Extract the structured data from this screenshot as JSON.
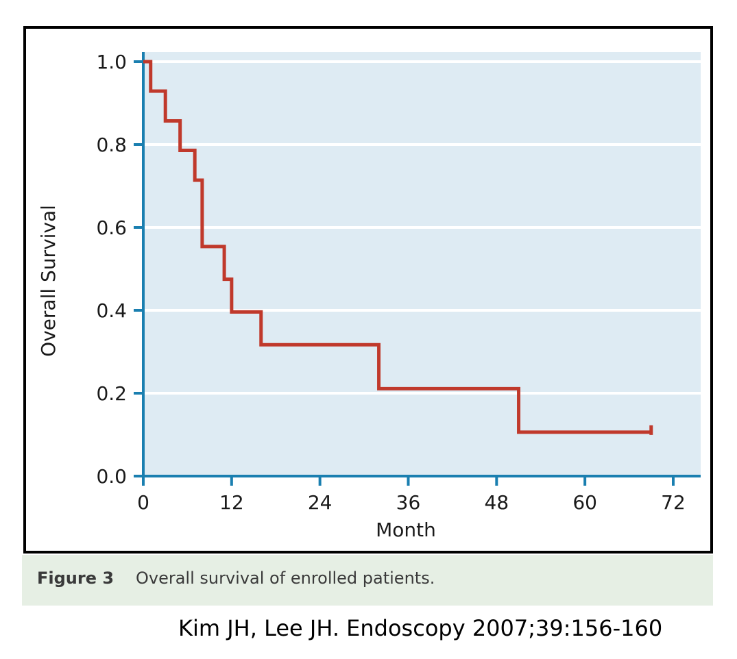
{
  "chart_data": {
    "type": "line",
    "step": true,
    "xlabel": "Month",
    "ylabel": "Overall Survival",
    "xlim": [
      0,
      72
    ],
    "ylim": [
      0,
      1.0
    ],
    "x_ticks": [
      "0",
      "12",
      "24",
      "36",
      "48",
      "60",
      "72"
    ],
    "y_ticks": [
      "0.0",
      "0.2",
      "0.4",
      "0.6",
      "0.8",
      "1.0"
    ],
    "grid": "horizontal",
    "colors": {
      "background": "#deebf3",
      "axis": "#1a7fb0",
      "line": "#c0392b",
      "grid": "#ffffff"
    },
    "series": [
      {
        "x": [
          0,
          1,
          3,
          5,
          7,
          8,
          11,
          12,
          16,
          32,
          51,
          69
        ],
        "y": [
          1.0,
          0.929,
          0.857,
          0.786,
          0.714,
          0.554,
          0.475,
          0.396,
          0.317,
          0.211,
          0.106,
          0.106
        ]
      }
    ]
  },
  "caption": {
    "label": "Figure 3",
    "text": "Overall survival of enrolled patients."
  },
  "citation": "Kim JH, Lee JH. Endoscopy 2007;39:156-160"
}
